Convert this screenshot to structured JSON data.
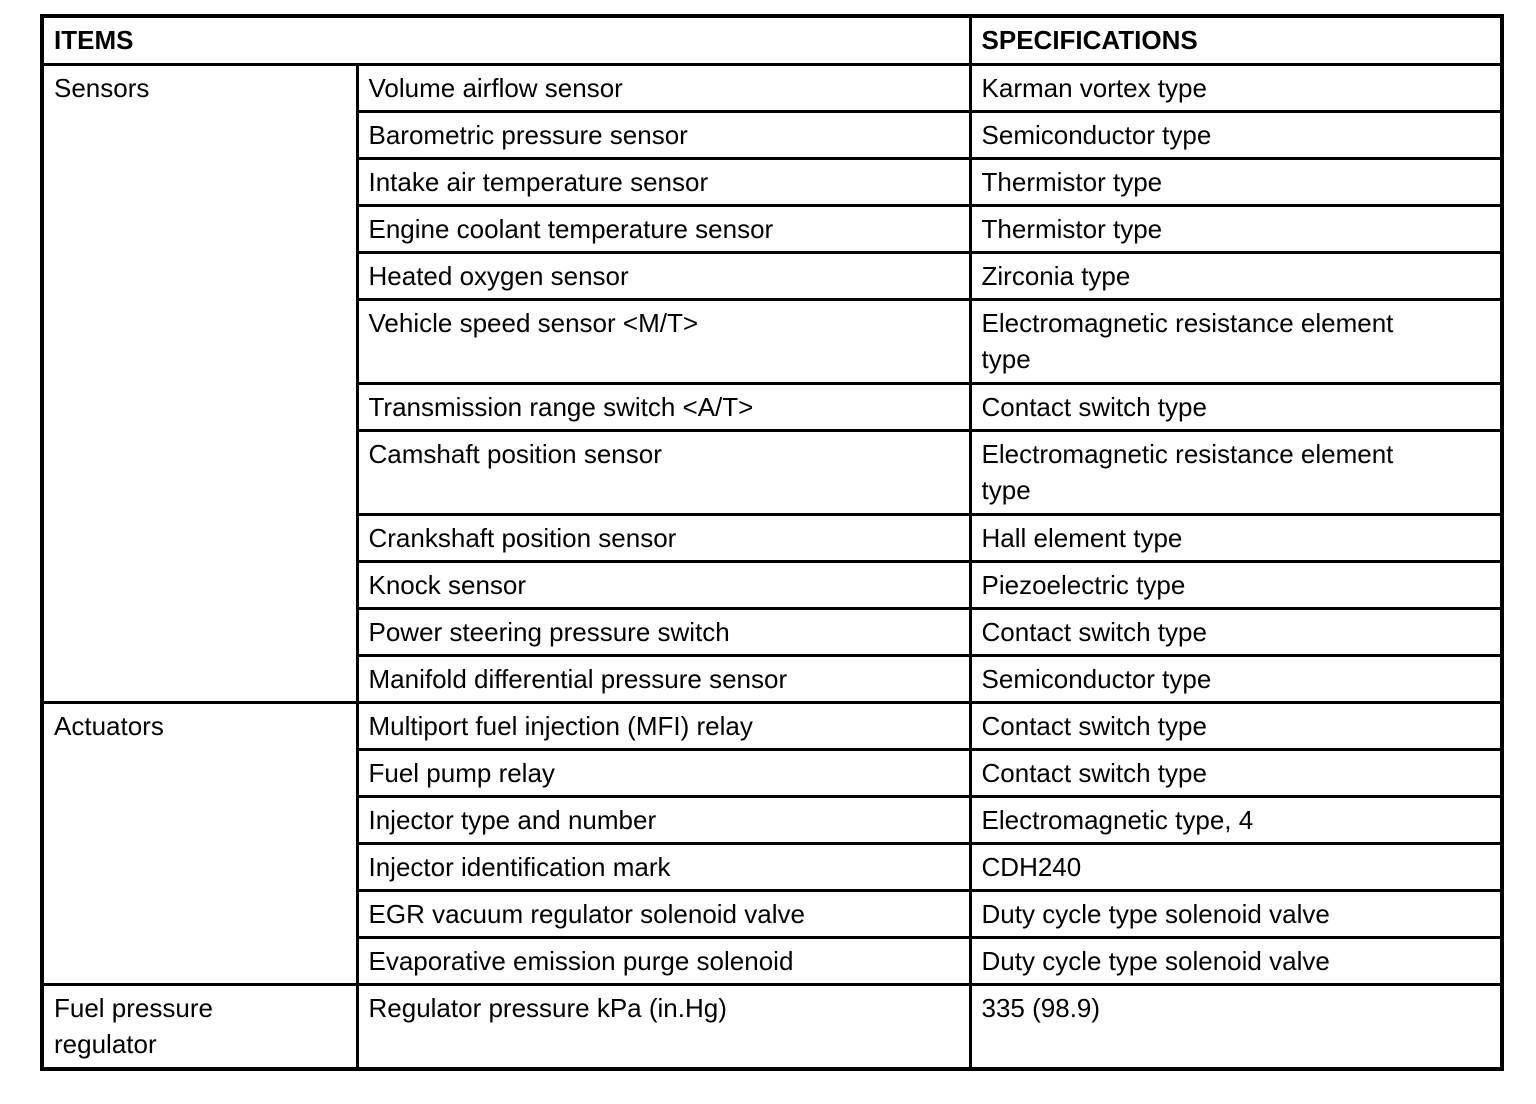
{
  "page": {
    "background": "#ffffff",
    "text_color": "#000000",
    "border_color": "#000000"
  },
  "table": {
    "header": {
      "items": "ITEMS",
      "specifications": "SPECIFICATIONS"
    },
    "groups": [
      {
        "category": "Sensors",
        "rows": [
          {
            "item": "Volume airflow sensor",
            "spec": "Karman vortex type"
          },
          {
            "item": "Barometric pressure sensor",
            "spec": "Semiconductor type"
          },
          {
            "item": "Intake air temperature sensor",
            "spec": "Thermistor type"
          },
          {
            "item": "Engine coolant temperature sensor",
            "spec": "Thermistor type"
          },
          {
            "item": "Heated oxygen sensor",
            "spec": "Zirconia type"
          },
          {
            "item": "Vehicle speed sensor <M/T>",
            "spec": "Electromagnetic resistance element type"
          },
          {
            "item": "Transmission range switch <A/T>",
            "spec": "Contact switch type"
          },
          {
            "item": "Camshaft position sensor",
            "spec": "Electromagnetic resistance element type"
          },
          {
            "item": "Crankshaft position sensor",
            "spec": "Hall element type"
          },
          {
            "item": "Knock sensor",
            "spec": "Piezoelectric type"
          },
          {
            "item": "Power steering pressure switch",
            "spec": "Contact switch type"
          },
          {
            "item": "Manifold differential pressure sensor",
            "spec": "Semiconductor type"
          }
        ]
      },
      {
        "category": "Actuators",
        "rows": [
          {
            "item": "Multiport fuel injection (MFI) relay",
            "spec": "Contact switch type"
          },
          {
            "item": "Fuel pump relay",
            "spec": "Contact switch type"
          },
          {
            "item": "Injector type and number",
            "spec": "Electromagnetic type, 4"
          },
          {
            "item": "Injector identification mark",
            "spec": "CDH240"
          },
          {
            "item": "EGR vacuum regulator solenoid valve",
            "spec": "Duty cycle type solenoid valve"
          },
          {
            "item": "Evaporative emission purge solenoid",
            "spec": "Duty cycle type solenoid valve"
          }
        ]
      },
      {
        "category": "Fuel pressure regulator",
        "rows": [
          {
            "item": "Regulator pressure kPa (in.Hg)",
            "spec": "335 (98.9)"
          }
        ]
      }
    ]
  }
}
